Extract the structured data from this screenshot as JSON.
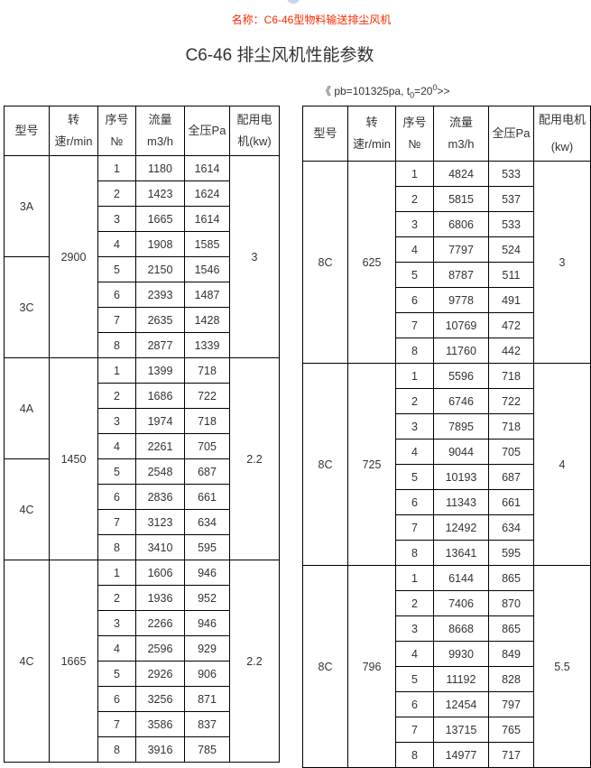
{
  "subtitle": "名称：C6-46型物料输送排尘风机",
  "title": "C6-46 排尘风机性能参数",
  "note": {
    "prefix": "《 pb=101325pa, t",
    "sub": "0",
    "mid": "=20",
    "sup": "0",
    "suffix": ">>"
  },
  "headers": {
    "left": [
      "型号",
      "转速r/min",
      "序号№",
      "流量m3/h",
      "全压Pa",
      "配用电机(kw)"
    ],
    "right": [
      "型号",
      "转速r/min",
      "序号№",
      "流量m3/h",
      "全压Pa",
      "配用电机(kw)"
    ]
  },
  "tables": [
    {
      "groups": [
        {
          "models": [
            {
              "name": "3A",
              "span": 4
            },
            {
              "name": "3C",
              "span": 4
            }
          ],
          "speed": "2900",
          "motor": "3",
          "rows": [
            [
              "1",
              "1180",
              "1614"
            ],
            [
              "2",
              "1423",
              "1624"
            ],
            [
              "3",
              "1665",
              "1614"
            ],
            [
              "4",
              "1908",
              "1585"
            ],
            [
              "5",
              "2150",
              "1546"
            ],
            [
              "6",
              "2393",
              "1487"
            ],
            [
              "7",
              "2635",
              "1428"
            ],
            [
              "8",
              "2877",
              "1339"
            ]
          ]
        },
        {
          "models": [
            {
              "name": "4A",
              "span": 4
            },
            {
              "name": "4C",
              "span": 4
            }
          ],
          "speed": "1450",
          "motor": "2.2",
          "rows": [
            [
              "1",
              "1399",
              "718"
            ],
            [
              "2",
              "1686",
              "722"
            ],
            [
              "3",
              "1974",
              "718"
            ],
            [
              "4",
              "2261",
              "705"
            ],
            [
              "5",
              "2548",
              "687"
            ],
            [
              "6",
              "2836",
              "661"
            ],
            [
              "7",
              "3123",
              "634"
            ],
            [
              "8",
              "3410",
              "595"
            ]
          ]
        },
        {
          "models": [
            {
              "name": "4C",
              "span": 8
            }
          ],
          "speed": "1665",
          "motor": "2.2",
          "rows": [
            [
              "1",
              "1606",
              "946"
            ],
            [
              "2",
              "1936",
              "952"
            ],
            [
              "3",
              "2266",
              "946"
            ],
            [
              "4",
              "2596",
              "929"
            ],
            [
              "5",
              "2926",
              "906"
            ],
            [
              "6",
              "3256",
              "871"
            ],
            [
              "7",
              "3586",
              "837"
            ],
            [
              "8",
              "3916",
              "785"
            ]
          ]
        }
      ]
    },
    {
      "groups": [
        {
          "models": [
            {
              "name": "8C",
              "span": 8
            }
          ],
          "speed": "625",
          "motor": "3",
          "rows": [
            [
              "1",
              "4824",
              "533"
            ],
            [
              "2",
              "5815",
              "537"
            ],
            [
              "3",
              "6806",
              "533"
            ],
            [
              "4",
              "7797",
              "524"
            ],
            [
              "5",
              "8787",
              "511"
            ],
            [
              "6",
              "9778",
              "491"
            ],
            [
              "7",
              "10769",
              "472"
            ],
            [
              "8",
              "11760",
              "442"
            ]
          ]
        },
        {
          "models": [
            {
              "name": "8C",
              "span": 8
            }
          ],
          "speed": "725",
          "motor": "4",
          "rows": [
            [
              "1",
              "5596",
              "718"
            ],
            [
              "2",
              "6746",
              "722"
            ],
            [
              "3",
              "7895",
              "718"
            ],
            [
              "4",
              "9044",
              "705"
            ],
            [
              "5",
              "10193",
              "687"
            ],
            [
              "6",
              "11343",
              "661"
            ],
            [
              "7",
              "12492",
              "634"
            ],
            [
              "8",
              "13641",
              "595"
            ]
          ]
        },
        {
          "models": [
            {
              "name": "8C",
              "span": 8
            }
          ],
          "speed": "796",
          "motor": "5.5",
          "rows": [
            [
              "1",
              "6144",
              "865"
            ],
            [
              "2",
              "7406",
              "870"
            ],
            [
              "3",
              "8668",
              "865"
            ],
            [
              "4",
              "9930",
              "849"
            ],
            [
              "5",
              "11192",
              "828"
            ],
            [
              "6",
              "12454",
              "797"
            ],
            [
              "7",
              "13715",
              "765"
            ],
            [
              "8",
              "14977",
              "717"
            ]
          ]
        }
      ]
    }
  ]
}
